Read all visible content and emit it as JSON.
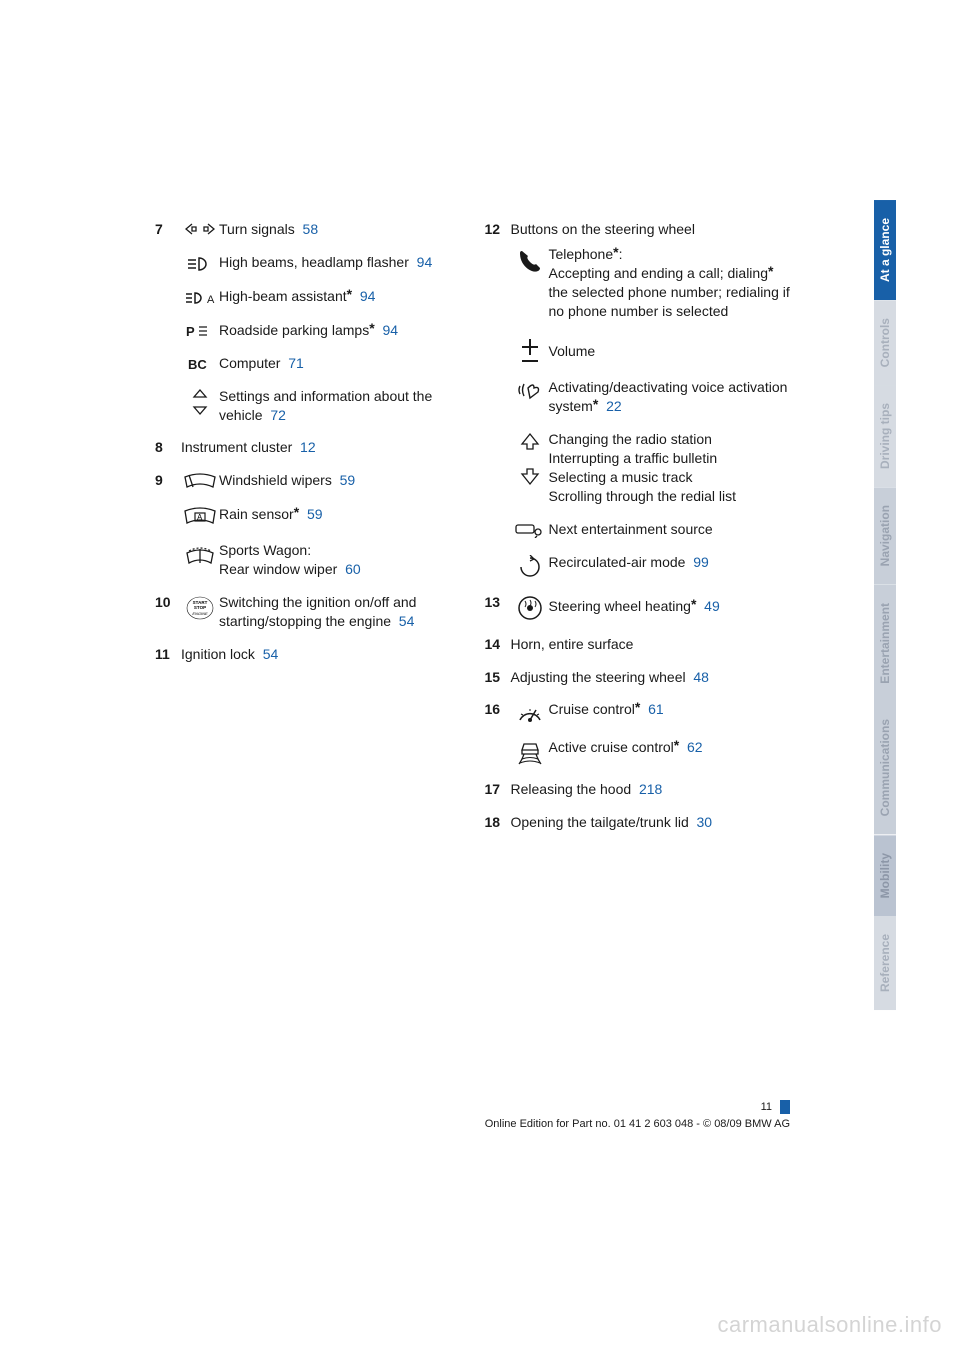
{
  "left": {
    "item7": {
      "num": "7",
      "rows": [
        {
          "text": "Turn signals",
          "ref": "58"
        },
        {
          "text": "High beams, headlamp flasher",
          "ref": "94"
        },
        {
          "text": "High-beam assistant",
          "star": true,
          "ref": "94"
        },
        {
          "text": "Roadside parking lamps",
          "star": true,
          "ref": "94"
        },
        {
          "text": "Computer",
          "ref": "71"
        },
        {
          "text": "Settings and information about the vehicle",
          "ref": "72"
        }
      ]
    },
    "item8": {
      "num": "8",
      "text": "Instrument cluster",
      "ref": "12"
    },
    "item9": {
      "num": "9",
      "rows": [
        {
          "text": "Windshield wipers",
          "ref": "59"
        },
        {
          "text": "Rain sensor",
          "star": true,
          "ref": "59"
        },
        {
          "text1": "Sports Wagon:",
          "text2": "Rear window wiper",
          "ref": "60"
        }
      ]
    },
    "item10": {
      "num": "10",
      "text": "Switching the ignition on/off and starting/stopping the engine",
      "ref": "54"
    },
    "item11": {
      "num": "11",
      "text": "Ignition lock",
      "ref": "54"
    }
  },
  "right": {
    "item12": {
      "num": "12",
      "heading": "Buttons on the steering wheel",
      "rows": [
        {
          "line1pre": "Telephone",
          "star1": true,
          "line1post": ":",
          "line2": "Accepting and ending a call; dialing",
          "star2": true,
          "line2b": " the selected phone number; redialing if no phone number is selected"
        },
        {
          "text": "Volume"
        },
        {
          "text": "Activating/deactivating voice activation system",
          "star": true,
          "ref": "22"
        },
        {
          "l1": "Changing the radio station",
          "l2": "Interrupting a traffic bulletin",
          "l3": "Selecting a music track",
          "l4": "Scrolling through the redial list"
        },
        {
          "text": "Next entertainment source"
        },
        {
          "text": "Recirculated-air mode",
          "ref": "99"
        }
      ]
    },
    "item13": {
      "num": "13",
      "text": "Steering wheel heating",
      "star": true,
      "ref": "49"
    },
    "item14": {
      "num": "14",
      "text": "Horn, entire surface"
    },
    "item15": {
      "num": "15",
      "text": "Adjusting the steering wheel",
      "ref": "48"
    },
    "item16": {
      "num": "16",
      "rows": [
        {
          "text": "Cruise control",
          "star": true,
          "ref": "61"
        },
        {
          "text": "Active cruise control",
          "star": true,
          "ref": "62"
        }
      ]
    },
    "item17": {
      "num": "17",
      "text": "Releasing the hood",
      "ref": "218"
    },
    "item18": {
      "num": "18",
      "text": "Opening the tailgate/trunk lid",
      "ref": "30"
    }
  },
  "tabs": [
    {
      "label": "At a glance",
      "bg": "#1860a8",
      "fg": "#ffffff"
    },
    {
      "label": "Controls",
      "bg": "#d6dbe2",
      "fg": "#a8b0bc"
    },
    {
      "label": "Driving tips",
      "bg": "#d6dbe2",
      "fg": "#a8b0bc"
    },
    {
      "label": "Navigation",
      "bg": "#c8cfd9",
      "fg": "#9aa3b1"
    },
    {
      "label": "Entertainment",
      "bg": "#c8cfd9",
      "fg": "#9aa3b1"
    },
    {
      "label": "Communications",
      "bg": "#c8cfd9",
      "fg": "#9aa3b1"
    },
    {
      "label": "Mobility",
      "bg": "#bac3d1",
      "fg": "#8d97a8"
    },
    {
      "label": "Reference",
      "bg": "#d6dbe2",
      "fg": "#a8b0bc"
    }
  ],
  "footer": {
    "page": "11",
    "line": "Online Edition for Part no. 01 41 2 603 048 - © 08/09 BMW AG"
  },
  "watermark": "carmanualsonline.info"
}
